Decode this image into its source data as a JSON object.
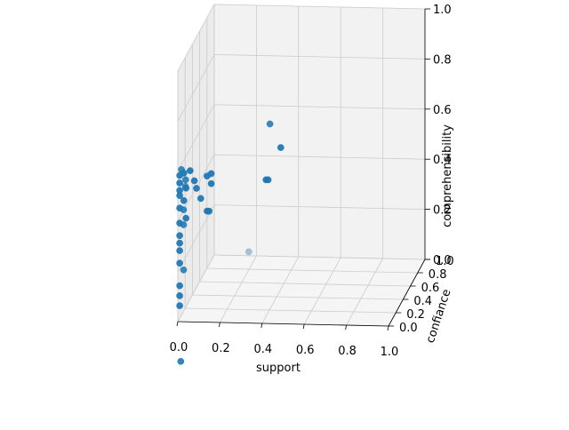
{
  "chart_data": {
    "type": "scatter",
    "projection": "3d",
    "xlabel": "support",
    "ylabel": "confiance",
    "zlabel": "comprehensibility",
    "xlim": [
      0,
      1
    ],
    "ylim": [
      0,
      1
    ],
    "zlim": [
      0,
      1
    ],
    "x_ticks": [
      "0.0",
      "0.2",
      "0.4",
      "0.6",
      "0.8",
      "1.0"
    ],
    "y_ticks": [
      "0.0",
      "0.2",
      "0.4",
      "0.6",
      "0.8",
      "1.0"
    ],
    "z_ticks": [
      "0.0",
      "0.2",
      "0.4",
      "0.6",
      "0.8",
      "1.0"
    ],
    "grid": true,
    "marker_color": "#1f77b4",
    "points": [
      {
        "x": 0.0,
        "y": 0.05,
        "z": 0.57
      },
      {
        "x": 0.0,
        "y": 0.1,
        "z": 0.58
      },
      {
        "x": 0.02,
        "y": 0.05,
        "z": 0.58
      },
      {
        "x": 0.05,
        "y": 0.05,
        "z": 0.59
      },
      {
        "x": 0.0,
        "y": 0.05,
        "z": 0.54
      },
      {
        "x": 0.02,
        "y": 0.1,
        "z": 0.54
      },
      {
        "x": 0.03,
        "y": 0.05,
        "z": 0.52
      },
      {
        "x": 0.0,
        "y": 0.05,
        "z": 0.51
      },
      {
        "x": 0.01,
        "y": 0.15,
        "z": 0.5
      },
      {
        "x": 0.0,
        "y": 0.05,
        "z": 0.49
      },
      {
        "x": 0.02,
        "y": 0.05,
        "z": 0.47
      },
      {
        "x": 0.0,
        "y": 0.05,
        "z": 0.44
      },
      {
        "x": 0.01,
        "y": 0.1,
        "z": 0.42
      },
      {
        "x": 0.03,
        "y": 0.05,
        "z": 0.4
      },
      {
        "x": 0.0,
        "y": 0.05,
        "z": 0.38
      },
      {
        "x": 0.01,
        "y": 0.1,
        "z": 0.36
      },
      {
        "x": 0.0,
        "y": 0.05,
        "z": 0.33
      },
      {
        "x": 0.0,
        "y": 0.05,
        "z": 0.3
      },
      {
        "x": 0.0,
        "y": 0.05,
        "z": 0.27
      },
      {
        "x": 0.0,
        "y": 0.05,
        "z": 0.22
      },
      {
        "x": 0.01,
        "y": 0.1,
        "z": 0.18
      },
      {
        "x": 0.0,
        "y": 0.05,
        "z": 0.13
      },
      {
        "x": 0.0,
        "y": 0.05,
        "z": 0.09
      },
      {
        "x": 0.0,
        "y": 0.05,
        "z": 0.05
      },
      {
        "x": 0.0,
        "y": 0.08,
        "z": -0.18
      },
      {
        "x": 0.07,
        "y": 0.05,
        "z": 0.55
      },
      {
        "x": 0.08,
        "y": 0.05,
        "z": 0.52
      },
      {
        "x": 0.1,
        "y": 0.05,
        "z": 0.48
      },
      {
        "x": 0.13,
        "y": 0.05,
        "z": 0.57
      },
      {
        "x": 0.15,
        "y": 0.05,
        "z": 0.54
      },
      {
        "x": 0.14,
        "y": 0.05,
        "z": 0.43
      },
      {
        "x": 0.13,
        "y": 0.05,
        "z": 0.43
      },
      {
        "x": 0.15,
        "y": 0.05,
        "z": 0.58
      },
      {
        "x": 0.42,
        "y": 0.1,
        "z": 0.77
      },
      {
        "x": 0.48,
        "y": 0.05,
        "z": 0.69
      },
      {
        "x": 0.41,
        "y": 0.05,
        "z": 0.56
      },
      {
        "x": 0.42,
        "y": 0.05,
        "z": 0.56
      },
      {
        "x": 0.25,
        "y": 0.5,
        "z": 0.15
      }
    ]
  }
}
